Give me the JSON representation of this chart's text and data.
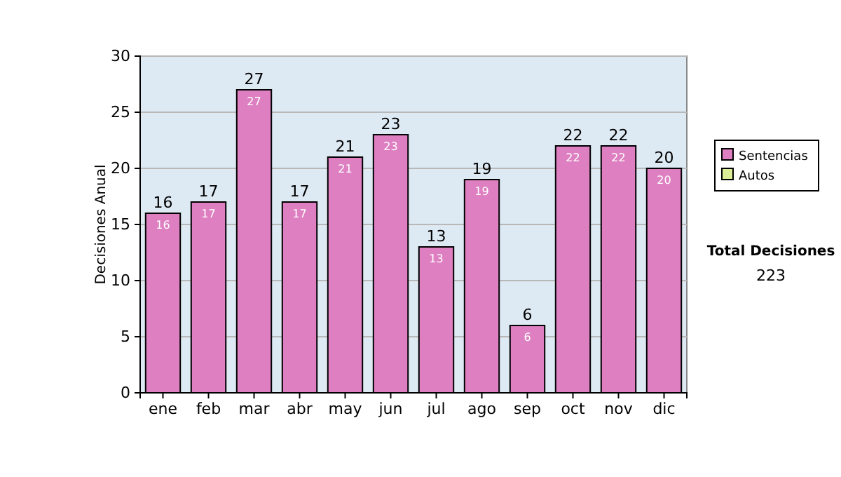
{
  "chart_data": {
    "type": "bar",
    "ylabel": "Decisiones Anual",
    "categories": [
      "ene",
      "feb",
      "mar",
      "abr",
      "may",
      "jun",
      "jul",
      "ago",
      "sep",
      "oct",
      "nov",
      "dic"
    ],
    "series": [
      {
        "name": "Sentencias",
        "color": "#dd7fc0",
        "values": [
          16,
          17,
          27,
          17,
          21,
          23,
          13,
          19,
          6,
          22,
          22,
          20
        ],
        "value_labels": [
          "16",
          "17",
          "27",
          "17",
          "21",
          "23",
          "13",
          "19",
          "6",
          "22",
          "22",
          "20"
        ]
      },
      {
        "name": "Autos",
        "color": "#ddee99",
        "values": [
          0,
          0,
          0,
          0,
          0,
          0,
          0,
          0,
          0,
          0,
          0,
          0
        ],
        "value_labels": [
          null,
          null,
          null,
          null,
          null,
          null,
          null,
          null,
          null,
          null,
          null,
          null
        ]
      }
    ],
    "stacked": true,
    "totals": [
      "16",
      "17",
      "27",
      "17",
      "21",
      "23",
      "13",
      "19",
      "6",
      "22",
      "22",
      "20"
    ],
    "ylim": [
      0,
      30
    ],
    "yticks": [
      0,
      5,
      10,
      15,
      20,
      25,
      30
    ],
    "grid": "y",
    "legend": "right",
    "annotations": [
      "Total Decisiones",
      "223"
    ]
  }
}
